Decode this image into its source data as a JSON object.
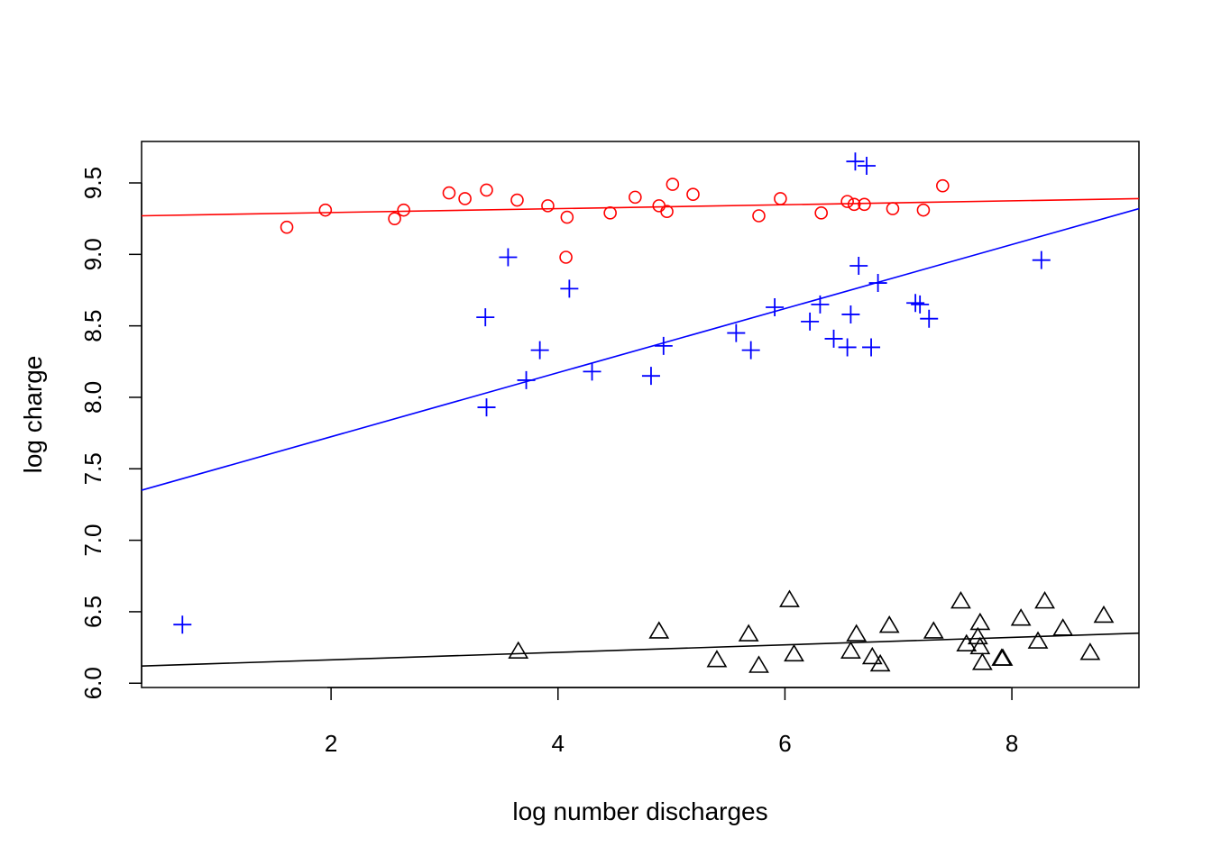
{
  "chart_data": {
    "type": "scatter",
    "title": "",
    "xlabel": "log number discharges",
    "ylabel": "log charge",
    "xlim": [
      0.33,
      9.12
    ],
    "ylim": [
      5.97,
      9.79
    ],
    "x_ticks": [
      2,
      4,
      6,
      8
    ],
    "y_ticks": [
      6.0,
      6.5,
      7.0,
      7.5,
      8.0,
      8.5,
      9.0,
      9.5
    ],
    "grid": false,
    "legend": "none",
    "series": [
      {
        "marker": "circle",
        "color": "#ff0000",
        "points": [
          [
            1.61,
            9.19
          ],
          [
            1.95,
            9.31
          ],
          [
            2.56,
            9.25
          ],
          [
            2.64,
            9.31
          ],
          [
            3.04,
            9.43
          ],
          [
            3.18,
            9.39
          ],
          [
            3.37,
            9.45
          ],
          [
            3.64,
            9.38
          ],
          [
            3.91,
            9.34
          ],
          [
            4.07,
            8.98
          ],
          [
            4.08,
            9.26
          ],
          [
            4.46,
            9.29
          ],
          [
            4.68,
            9.4
          ],
          [
            4.89,
            9.34
          ],
          [
            4.96,
            9.3
          ],
          [
            5.01,
            9.49
          ],
          [
            5.19,
            9.42
          ],
          [
            5.77,
            9.27
          ],
          [
            5.96,
            9.39
          ],
          [
            6.32,
            9.29
          ],
          [
            6.55,
            9.37
          ],
          [
            6.61,
            9.35
          ],
          [
            6.7,
            9.35
          ],
          [
            6.95,
            9.32
          ],
          [
            7.22,
            9.31
          ],
          [
            7.39,
            9.48
          ]
        ],
        "fit": [
          0.33,
          9.27,
          9.12,
          9.39
        ]
      },
      {
        "marker": "plus",
        "color": "#0000ff",
        "points": [
          [
            0.69,
            6.41
          ],
          [
            3.36,
            8.56
          ],
          [
            3.37,
            7.93
          ],
          [
            3.56,
            8.98
          ],
          [
            3.72,
            8.12
          ],
          [
            3.84,
            8.33
          ],
          [
            4.1,
            8.76
          ],
          [
            4.3,
            8.18
          ],
          [
            4.82,
            8.15
          ],
          [
            4.93,
            8.36
          ],
          [
            5.57,
            8.45
          ],
          [
            5.7,
            8.33
          ],
          [
            5.91,
            8.63
          ],
          [
            6.22,
            8.53
          ],
          [
            6.31,
            8.65
          ],
          [
            6.43,
            8.41
          ],
          [
            6.55,
            8.35
          ],
          [
            6.58,
            8.58
          ],
          [
            6.62,
            9.65
          ],
          [
            6.65,
            8.92
          ],
          [
            6.72,
            9.62
          ],
          [
            6.76,
            8.35
          ],
          [
            6.82,
            8.8
          ],
          [
            7.15,
            8.66
          ],
          [
            7.19,
            8.65
          ],
          [
            7.27,
            8.55
          ],
          [
            8.26,
            8.96
          ]
        ],
        "fit": [
          0.33,
          7.35,
          9.12,
          9.32
        ]
      },
      {
        "marker": "triangle",
        "color": "#000000",
        "points": [
          [
            3.65,
            6.22
          ],
          [
            4.89,
            6.36
          ],
          [
            5.4,
            6.16
          ],
          [
            5.68,
            6.34
          ],
          [
            5.77,
            6.12
          ],
          [
            6.04,
            6.58
          ],
          [
            6.08,
            6.2
          ],
          [
            6.58,
            6.22
          ],
          [
            6.63,
            6.34
          ],
          [
            6.77,
            6.18
          ],
          [
            6.84,
            6.13
          ],
          [
            6.92,
            6.4
          ],
          [
            7.31,
            6.36
          ],
          [
            7.55,
            6.57
          ],
          [
            7.6,
            6.27
          ],
          [
            7.7,
            6.32
          ],
          [
            7.72,
            6.25
          ],
          [
            7.72,
            6.42
          ],
          [
            7.74,
            6.14
          ],
          [
            7.91,
            6.17
          ],
          [
            7.92,
            6.17
          ],
          [
            8.08,
            6.45
          ],
          [
            8.23,
            6.29
          ],
          [
            8.29,
            6.57
          ],
          [
            8.45,
            6.38
          ],
          [
            8.69,
            6.21
          ],
          [
            8.81,
            6.47
          ]
        ],
        "fit": [
          0.33,
          6.12,
          9.12,
          6.35
        ]
      }
    ]
  }
}
